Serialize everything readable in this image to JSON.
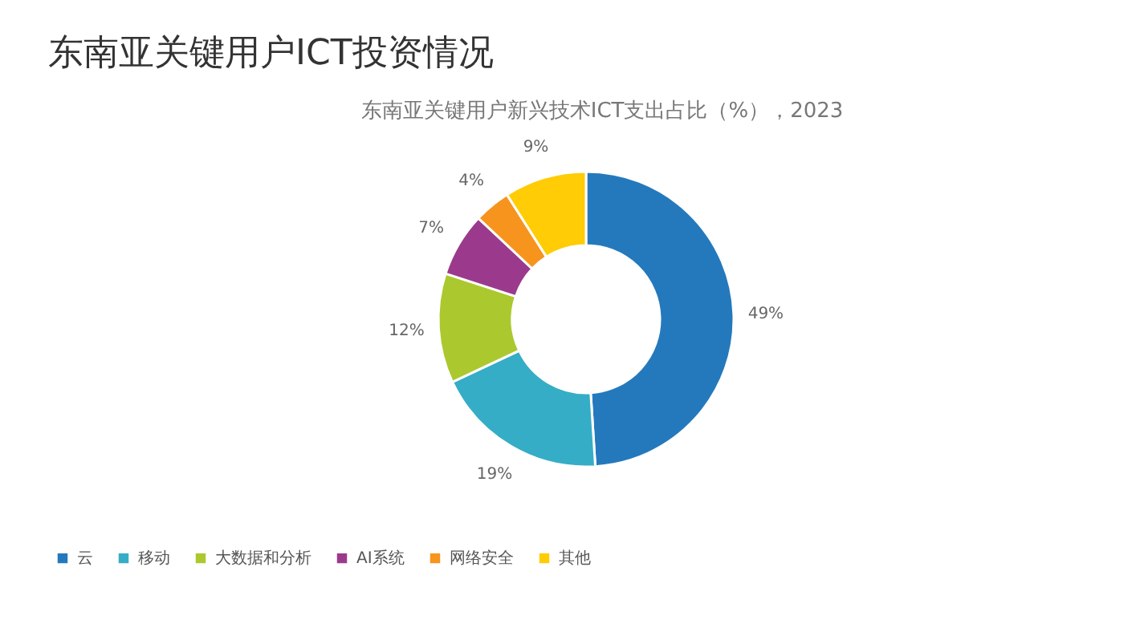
{
  "chart_data": {
    "type": "donut",
    "title": "东南亚关键用户ICT投资情况",
    "subtitle": "东南亚关键用户新兴技术ICT支出占比（%），2023",
    "categories": [
      "云",
      "移动",
      "大数据和分析",
      "AI系统",
      "网络安全",
      "其他"
    ],
    "values": [
      49,
      19,
      12,
      7,
      4,
      9
    ],
    "value_labels": [
      "49%",
      "19%",
      "12%",
      "7%",
      "4%",
      "9%"
    ],
    "colors": [
      "#2479bd",
      "#36adc7",
      "#abc92f",
      "#9b3a8c",
      "#f7941d",
      "#ffcc05"
    ],
    "legend": "bottom"
  }
}
